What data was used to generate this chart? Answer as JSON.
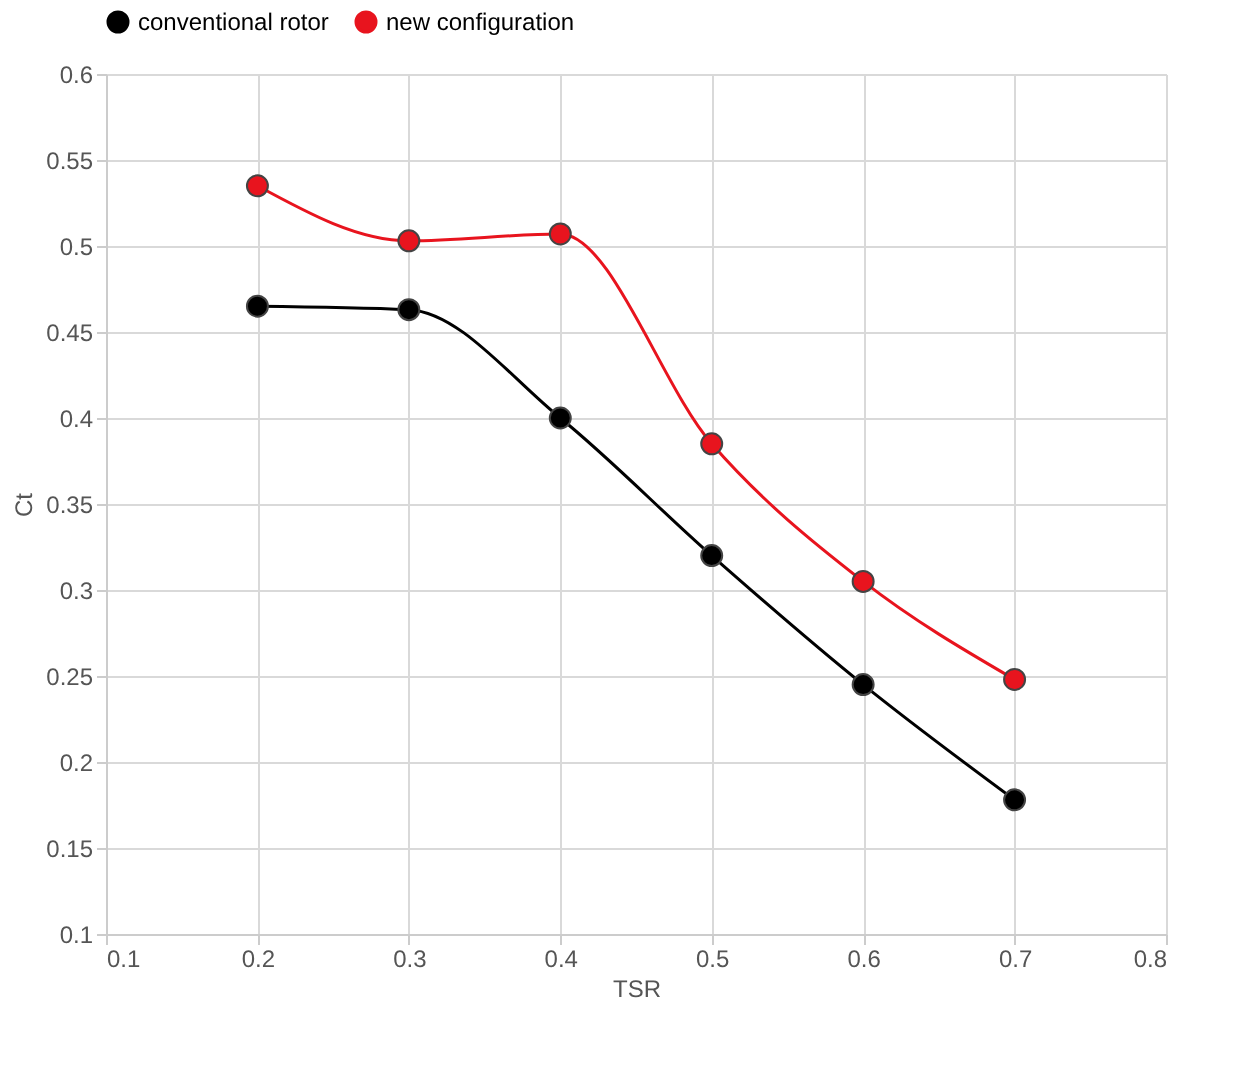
{
  "chart_data": {
    "type": "line",
    "xlabel": "TSR",
    "ylabel": "Ct",
    "x": [
      0.2,
      0.3,
      0.4,
      0.5,
      0.6,
      0.7
    ],
    "series": [
      {
        "name": "conventional rotor",
        "color": "#000000",
        "values": [
          0.465,
          0.463,
          0.4,
          0.32,
          0.245,
          0.178
        ]
      },
      {
        "name": "new configuration",
        "color": "#e8141e",
        "values": [
          0.535,
          0.503,
          0.507,
          0.385,
          0.305,
          0.248
        ]
      }
    ],
    "xlim": [
      0.1,
      0.8
    ],
    "xticks": [
      0.1,
      0.2,
      0.3,
      0.4,
      0.5,
      0.6,
      0.7,
      0.8
    ],
    "ylim": [
      0.1,
      0.6
    ],
    "yticks": [
      0.1,
      0.15,
      0.2,
      0.25,
      0.3,
      0.35,
      0.4,
      0.45,
      0.5,
      0.55,
      0.6
    ],
    "grid": true,
    "legend": "top",
    "marker": "circle",
    "line_style": "solid"
  }
}
